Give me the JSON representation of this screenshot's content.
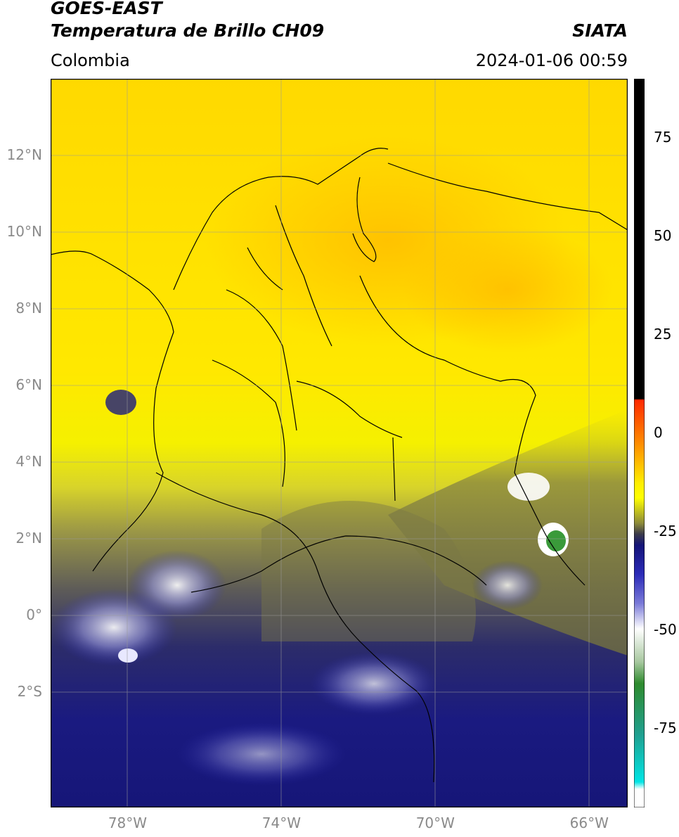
{
  "header": {
    "title_line1": "GOES-EAST",
    "title_line2": "Temperatura de Brillo CH09",
    "brand": "SIATA",
    "region": "Colombia",
    "datetime": "2024-01-06 00:59"
  },
  "map": {
    "lon_range": [
      -80,
      -65
    ],
    "lat_range": [
      -5,
      14
    ],
    "lat_ticks": [
      {
        "value": 12,
        "label": "12°N"
      },
      {
        "value": 10,
        "label": "10°N"
      },
      {
        "value": 8,
        "label": "8°N"
      },
      {
        "value": 6,
        "label": "6°N"
      },
      {
        "value": 4,
        "label": "4°N"
      },
      {
        "value": 2,
        "label": "2°N"
      },
      {
        "value": 0,
        "label": "0°"
      },
      {
        "value": -2,
        "label": "2°S"
      }
    ],
    "lon_ticks": [
      {
        "value": -78,
        "label": "78°W"
      },
      {
        "value": -74,
        "label": "74°W"
      },
      {
        "value": -70,
        "label": "70°W"
      },
      {
        "value": -66,
        "label": "66°W"
      }
    ]
  },
  "colorbar": {
    "range": [
      -95,
      90
    ],
    "labels": [
      {
        "value": 75,
        "label": "75"
      },
      {
        "value": 50,
        "label": "50"
      },
      {
        "value": 25,
        "label": "25"
      },
      {
        "value": 0,
        "label": "0"
      },
      {
        "value": -25,
        "label": "-25"
      },
      {
        "value": -50,
        "label": "-50"
      },
      {
        "value": -75,
        "label": "-75"
      }
    ],
    "colors": {
      "black": "#000000",
      "red": "#ff2a00",
      "orange": "#ff8c00",
      "yellow": "#ffff00",
      "olive": "#8c8a3a",
      "gray": "#3a3a4a",
      "navy": "#141478",
      "blue": "#2b2bb8",
      "white": "#ffffff",
      "green": "#2e8b2e",
      "teal": "#20b2aa",
      "cyan": "#00e5e5"
    }
  }
}
